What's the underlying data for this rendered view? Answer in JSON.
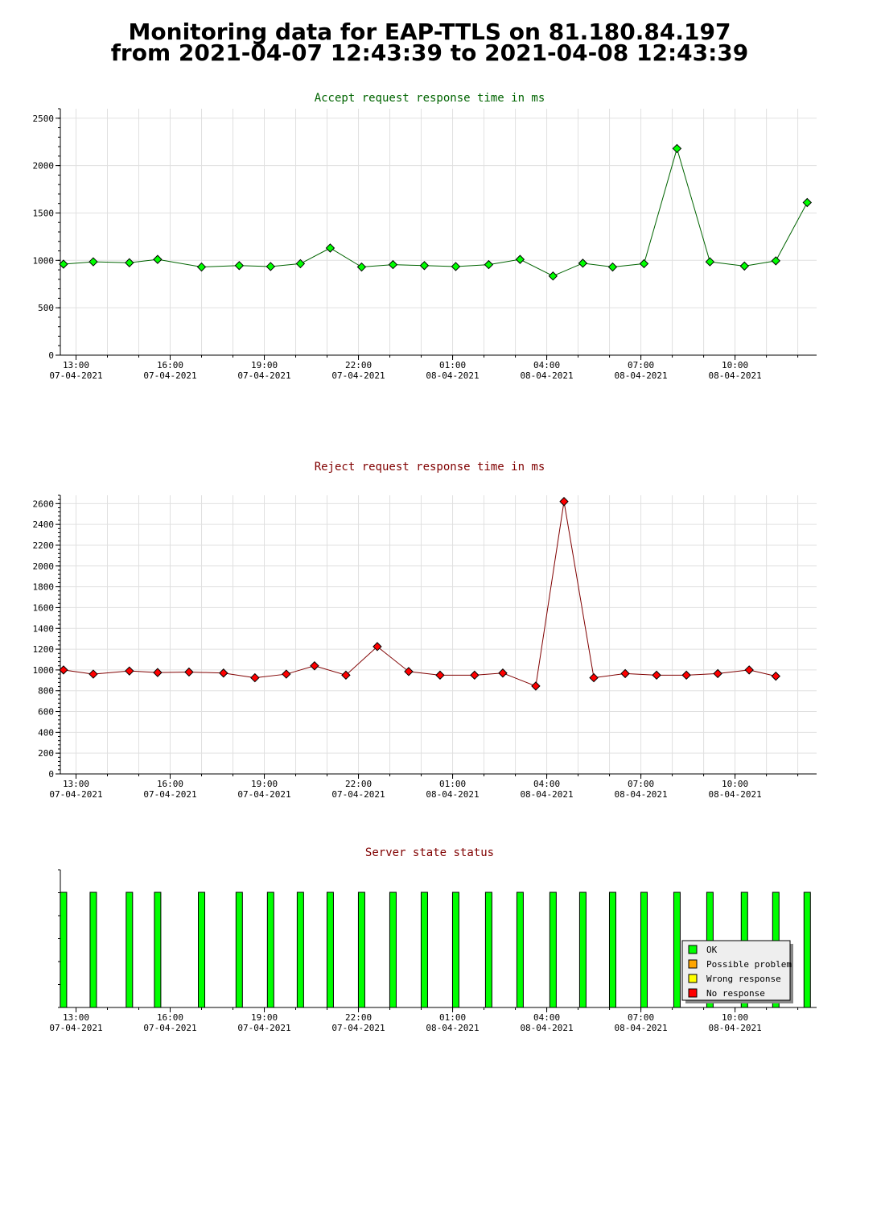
{
  "header": {
    "line1": "Monitoring data for EAP-TTLS on 81.180.84.197",
    "line2": "from 2021-04-07 12:43:39 to 2021-04-08 12:43:39"
  },
  "colors": {
    "accept_title": "#006400",
    "reject_title": "#800000",
    "status_title": "#800000",
    "accept_marker": "#00ff00",
    "reject_marker": "#ff0000",
    "ok": "#00ff00",
    "possible_problem": "#ffa500",
    "wrong_response": "#ffff00",
    "no_response": "#ff0000"
  },
  "chart_data": [
    {
      "type": "line",
      "title": "Accept request response time in ms",
      "x_unit": "hours since 2021-04-07 13:00",
      "x": [
        -0.4,
        0.55,
        1.7,
        2.6,
        4.0,
        5.2,
        6.2,
        7.15,
        8.1,
        9.1,
        10.1,
        11.1,
        12.1,
        13.15,
        14.15,
        15.2,
        16.15,
        17.1,
        18.1,
        19.15,
        20.2,
        21.3,
        22.3,
        23.3
      ],
      "values": [
        960,
        985,
        975,
        1010,
        930,
        945,
        935,
        965,
        1130,
        930,
        955,
        945,
        935,
        955,
        1010,
        835,
        970,
        930,
        965,
        2180,
        985,
        940,
        995,
        1610
      ],
      "xlim": [
        -0.5,
        23.6
      ],
      "ylim": [
        0,
        2600
      ],
      "yticks": [
        0,
        500,
        1000,
        1500,
        2000,
        2500
      ],
      "xticks": [
        {
          "h": 0,
          "time": "13:00",
          "date": "07-04-2021"
        },
        {
          "h": 3,
          "time": "16:00",
          "date": "07-04-2021"
        },
        {
          "h": 6,
          "time": "19:00",
          "date": "07-04-2021"
        },
        {
          "h": 9,
          "time": "22:00",
          "date": "07-04-2021"
        },
        {
          "h": 12,
          "time": "01:00",
          "date": "08-04-2021"
        },
        {
          "h": 15,
          "time": "04:00",
          "date": "08-04-2021"
        },
        {
          "h": 18,
          "time": "07:00",
          "date": "08-04-2021"
        },
        {
          "h": 21,
          "time": "10:00",
          "date": "08-04-2021"
        }
      ],
      "grid": true
    },
    {
      "type": "line",
      "title": "Reject request response time in ms",
      "x_unit": "hours since 2021-04-07 13:00",
      "x": [
        -0.4,
        0.55,
        1.7,
        2.6,
        3.6,
        4.7,
        5.7,
        6.7,
        7.6,
        8.6,
        9.6,
        10.6,
        11.6,
        12.7,
        13.6,
        14.65,
        15.55,
        16.5,
        17.5,
        18.5,
        19.45,
        20.45,
        21.45,
        22.3
      ],
      "values": [
        1000,
        960,
        990,
        975,
        980,
        970,
        925,
        960,
        1040,
        950,
        1225,
        985,
        950,
        950,
        970,
        845,
        2620,
        925,
        965,
        950,
        950,
        965,
        1000,
        940
      ],
      "xlim": [
        -0.5,
        23.6
      ],
      "ylim": [
        0,
        2680
      ],
      "yticks": [
        0,
        200,
        400,
        600,
        800,
        1000,
        1200,
        1400,
        1600,
        1800,
        2000,
        2200,
        2400,
        2600
      ],
      "xticks": [
        {
          "h": 0,
          "time": "13:00",
          "date": "07-04-2021"
        },
        {
          "h": 3,
          "time": "16:00",
          "date": "07-04-2021"
        },
        {
          "h": 6,
          "time": "19:00",
          "date": "07-04-2021"
        },
        {
          "h": 9,
          "time": "22:00",
          "date": "07-04-2021"
        },
        {
          "h": 12,
          "time": "01:00",
          "date": "08-04-2021"
        },
        {
          "h": 15,
          "time": "04:00",
          "date": "08-04-2021"
        },
        {
          "h": 18,
          "time": "07:00",
          "date": "08-04-2021"
        },
        {
          "h": 21,
          "time": "10:00",
          "date": "08-04-2021"
        }
      ],
      "grid": true
    },
    {
      "type": "bar",
      "title": "Server state status",
      "x_unit": "hours since 2021-04-07 13:00",
      "x": [
        -0.4,
        0.55,
        1.7,
        2.6,
        4.0,
        5.2,
        6.2,
        7.15,
        8.1,
        9.1,
        10.1,
        11.1,
        12.1,
        13.15,
        14.15,
        15.2,
        16.15,
        17.1,
        18.1,
        19.15,
        20.2,
        21.3,
        22.3,
        23.3
      ],
      "state": [
        "OK",
        "OK",
        "OK",
        "OK",
        "OK",
        "OK",
        "OK",
        "OK",
        "OK",
        "OK",
        "OK",
        "OK",
        "OK",
        "OK",
        "OK",
        "OK",
        "OK",
        "OK",
        "OK",
        "OK",
        "OK",
        "OK",
        "OK",
        "OK"
      ],
      "xlim": [
        -0.5,
        23.6
      ],
      "xticks": [
        {
          "h": 0,
          "time": "13:00",
          "date": "07-04-2021"
        },
        {
          "h": 3,
          "time": "16:00",
          "date": "07-04-2021"
        },
        {
          "h": 6,
          "time": "19:00",
          "date": "07-04-2021"
        },
        {
          "h": 9,
          "time": "22:00",
          "date": "07-04-2021"
        },
        {
          "h": 12,
          "time": "01:00",
          "date": "08-04-2021"
        },
        {
          "h": 15,
          "time": "04:00",
          "date": "08-04-2021"
        },
        {
          "h": 18,
          "time": "07:00",
          "date": "08-04-2021"
        },
        {
          "h": 21,
          "time": "10:00",
          "date": "08-04-2021"
        }
      ],
      "legend": {
        "placement": "bottom-right",
        "entries": [
          {
            "label": "OK",
            "color": "#00ff00"
          },
          {
            "label": "Possible problem",
            "color": "#ffa500"
          },
          {
            "label": "Wrong response",
            "color": "#ffff00"
          },
          {
            "label": "No response",
            "color": "#ff0000"
          }
        ]
      }
    }
  ]
}
